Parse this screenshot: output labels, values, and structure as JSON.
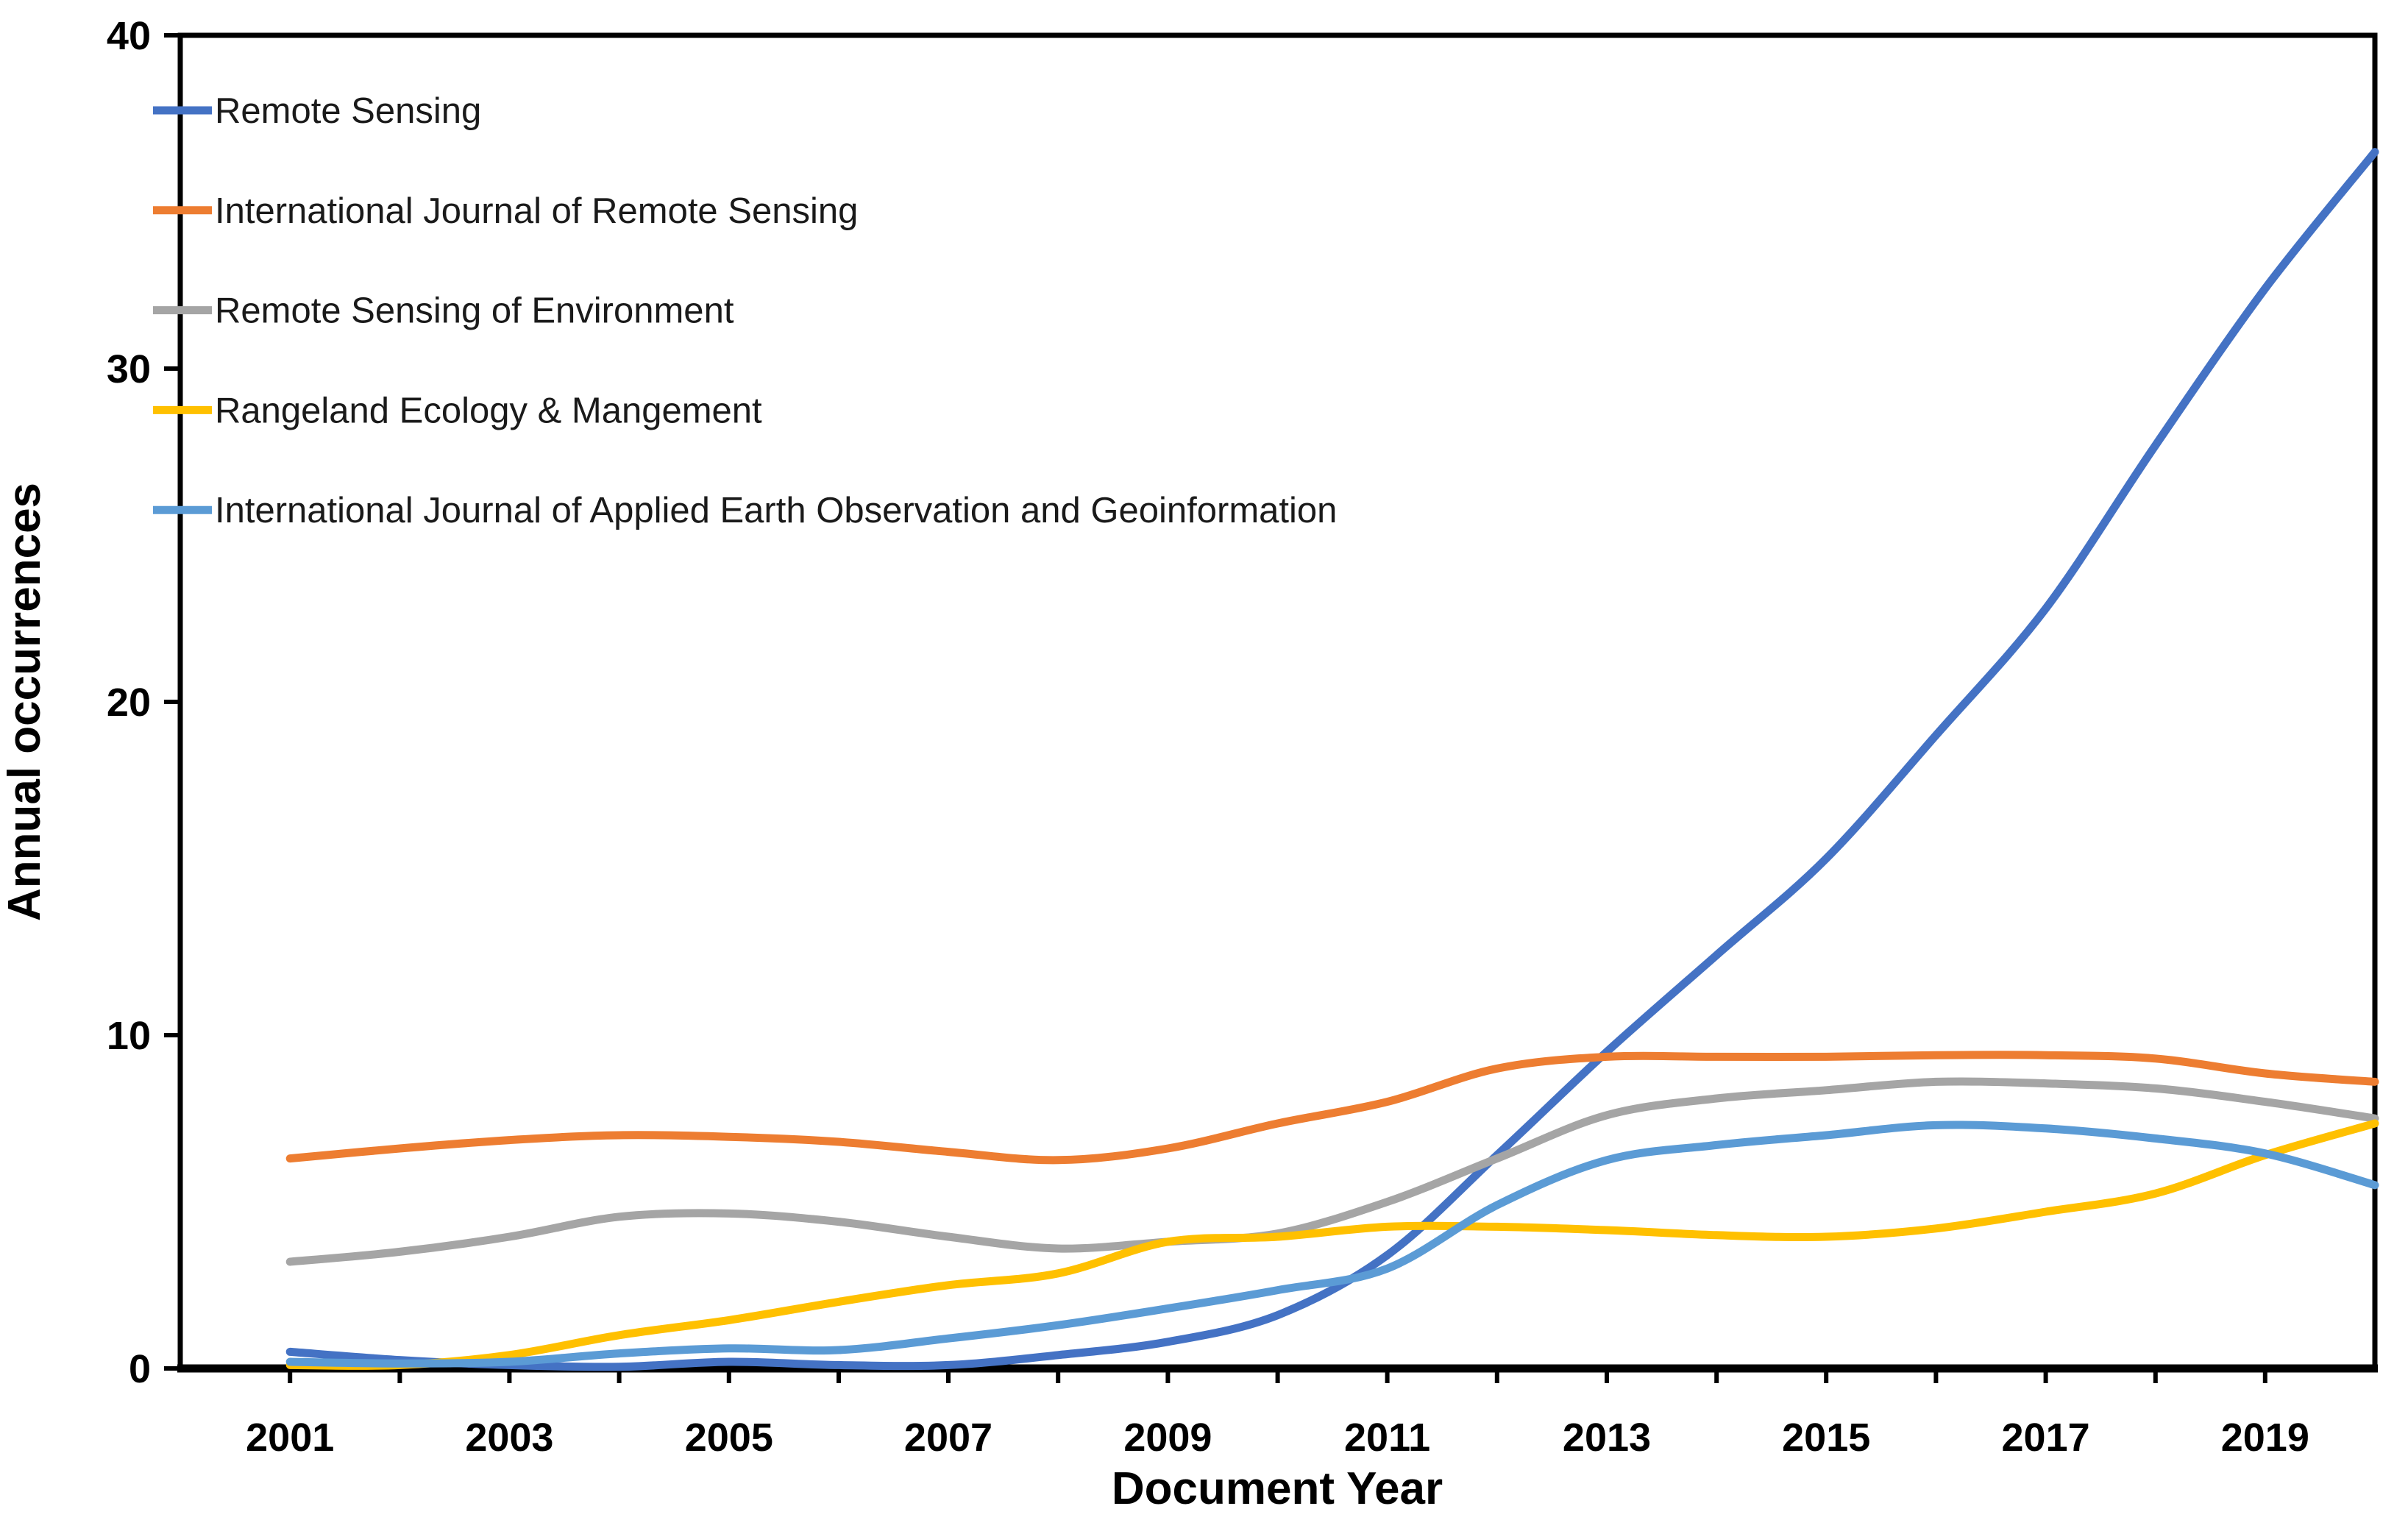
{
  "chart_data": {
    "type": "line",
    "line_style": "smooth",
    "title": "",
    "xlabel": "Document Year",
    "ylabel": "Annual occurrences",
    "xlim": [
      2000,
      2020
    ],
    "ylim": [
      0,
      40
    ],
    "y_ticks": [
      0,
      10,
      20,
      30,
      40
    ],
    "x_tick_labels": [
      2001,
      2003,
      2005,
      2007,
      2009,
      2011,
      2013,
      2015,
      2017,
      2019
    ],
    "grid": false,
    "legend_position": "top-left",
    "background_color": "#ffffff",
    "axis_color": "#000000",
    "x": [
      2001,
      2002,
      2003,
      2004,
      2005,
      2006,
      2007,
      2008,
      2009,
      2010,
      2011,
      2012,
      2013,
      2014,
      2015,
      2016,
      2017,
      2018,
      2019,
      2020
    ],
    "series": [
      {
        "name": "Remote Sensing",
        "color": "#4472C4",
        "values": [
          0.5,
          0.25,
          0.1,
          0.05,
          0.2,
          0.1,
          0.1,
          0.4,
          0.8,
          1.6,
          3.4,
          6.4,
          9.5,
          12.4,
          15.3,
          19.0,
          22.8,
          27.7,
          32.4,
          36.5
        ]
      },
      {
        "name": "International Journal of Remote Sensing",
        "color": "#ED7D31",
        "values": [
          6.3,
          6.6,
          6.85,
          7.0,
          6.95,
          6.8,
          6.5,
          6.25,
          6.6,
          7.35,
          8.0,
          9.0,
          9.35,
          9.35,
          9.35,
          9.4,
          9.4,
          9.3,
          8.85,
          8.6
        ]
      },
      {
        "name": "Remote Sensing of Environment",
        "color": "#A5A5A5",
        "values": [
          3.2,
          3.5,
          3.95,
          4.55,
          4.65,
          4.4,
          3.95,
          3.6,
          3.8,
          4.05,
          5.0,
          6.3,
          7.6,
          8.1,
          8.35,
          8.6,
          8.55,
          8.4,
          8.0,
          7.5
        ]
      },
      {
        "name": "Rangeland Ecology & Mangement",
        "color": "#FFC000",
        "values": [
          0.1,
          0.1,
          0.4,
          1.0,
          1.45,
          2.0,
          2.5,
          2.85,
          3.8,
          3.95,
          4.25,
          4.25,
          4.15,
          4.0,
          3.95,
          4.2,
          4.7,
          5.25,
          6.4,
          7.35
        ]
      },
      {
        "name": "International Journal of Applied Earth Observation and Geoinformation",
        "color": "#5B9BD5",
        "values": [
          0.2,
          0.15,
          0.2,
          0.45,
          0.6,
          0.55,
          0.9,
          1.3,
          1.8,
          2.35,
          3.0,
          4.9,
          6.25,
          6.7,
          7.0,
          7.3,
          7.2,
          6.9,
          6.45,
          5.5
        ]
      }
    ]
  }
}
